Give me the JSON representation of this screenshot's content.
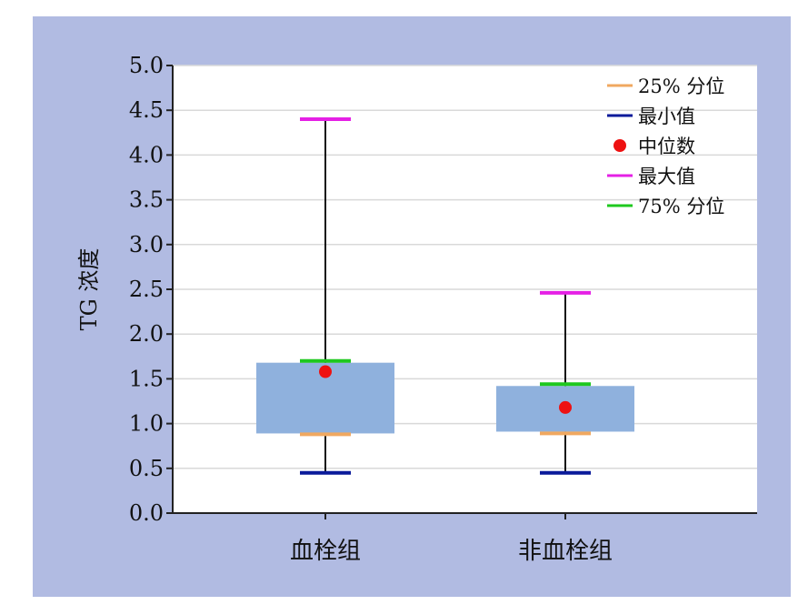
{
  "chart_data": {
    "type": "box",
    "title": "",
    "ylabel": "TG 浓度",
    "xlabel": "",
    "ylim": [
      0,
      5
    ],
    "yticks": [
      "0.0",
      "0.5",
      "1.0",
      "1.5",
      "2.0",
      "2.5",
      "3.0",
      "3.5",
      "4.0",
      "4.5",
      "5.0"
    ],
    "grid": true,
    "legend_position": "top-right",
    "categories": [
      "血栓组",
      "非血栓组"
    ],
    "boxes": [
      {
        "category": "血栓组",
        "min": 0.45,
        "q1": 0.88,
        "median": 1.58,
        "q3": 1.7,
        "max": 4.4,
        "box_low": 0.89,
        "box_high": 1.68
      },
      {
        "category": "非血栓组",
        "min": 0.45,
        "q1": 0.89,
        "median": 1.18,
        "q3": 1.44,
        "max": 2.46,
        "box_low": 0.91,
        "box_high": 1.42
      }
    ],
    "legend": [
      {
        "label": "25% 分位",
        "key": "q1",
        "color": "#f0a860",
        "marker": "line"
      },
      {
        "label": "最小值",
        "key": "min",
        "color": "#0a1a9a",
        "marker": "line"
      },
      {
        "label": "中位数",
        "key": "median",
        "color": "#ee1111",
        "marker": "dot"
      },
      {
        "label": "最大值",
        "key": "max",
        "color": "#e520e5",
        "marker": "line"
      },
      {
        "label": "75% 分位",
        "key": "q3",
        "color": "#1ec81e",
        "marker": "line"
      }
    ],
    "colors": {
      "box_fill": "#8fb1dd",
      "whisker": "#111111",
      "grid": "#d9d9d9",
      "panel_bg": "#b1bbe2"
    }
  }
}
